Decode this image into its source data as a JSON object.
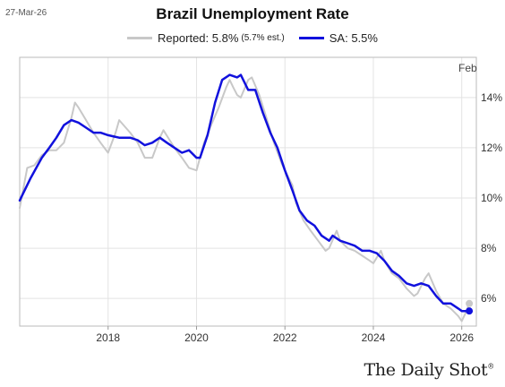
{
  "header": {
    "date": "27-Mar-26",
    "title": "Brazil Unemployment Rate"
  },
  "legend": {
    "reported_label": "Reported: 5.8%",
    "reported_note": "(5.7% est.)",
    "sa_label": "SA: 5.5%"
  },
  "brand": {
    "name": "The Daily Shot",
    "mark": "®"
  },
  "chart_data": {
    "type": "line",
    "title": "Brazil Unemployment Rate",
    "xlabel": "",
    "ylabel": "",
    "xlim": [
      2016.0,
      2026.33
    ],
    "ylim": [
      4.9,
      15.6
    ],
    "x_ticks": [
      2018,
      2020,
      2022,
      2024,
      2026
    ],
    "x_tick_labels": [
      "2018",
      "2020",
      "2022",
      "2024",
      "2026"
    ],
    "y_ticks": [
      6,
      8,
      10,
      12,
      14
    ],
    "y_tick_labels": [
      "6%",
      "8%",
      "10%",
      "12%",
      "14%"
    ],
    "grid": true,
    "legend_position": "top",
    "annotation": "Feb",
    "colors": {
      "reported": "#c8c8c8",
      "sa": "#1111dd",
      "grid": "#e3e3e3"
    },
    "series": [
      {
        "name": "Reported",
        "legend_label": "Reported: 5.8%",
        "color": "#c8c8c8",
        "points": [
          [
            2016.0,
            9.6
          ],
          [
            2016.17,
            11.2
          ],
          [
            2016.33,
            11.3
          ],
          [
            2016.5,
            11.7
          ],
          [
            2016.67,
            11.9
          ],
          [
            2016.83,
            11.9
          ],
          [
            2017.0,
            12.2
          ],
          [
            2017.17,
            13.2
          ],
          [
            2017.25,
            13.8
          ],
          [
            2017.33,
            13.6
          ],
          [
            2017.5,
            13.1
          ],
          [
            2017.67,
            12.6
          ],
          [
            2017.83,
            12.2
          ],
          [
            2018.0,
            11.8
          ],
          [
            2018.17,
            12.6
          ],
          [
            2018.25,
            13.1
          ],
          [
            2018.5,
            12.6
          ],
          [
            2018.67,
            12.2
          ],
          [
            2018.83,
            11.6
          ],
          [
            2019.0,
            11.6
          ],
          [
            2019.17,
            12.4
          ],
          [
            2019.25,
            12.7
          ],
          [
            2019.5,
            12.0
          ],
          [
            2019.67,
            11.6
          ],
          [
            2019.83,
            11.2
          ],
          [
            2020.0,
            11.1
          ],
          [
            2020.17,
            12.2
          ],
          [
            2020.33,
            12.9
          ],
          [
            2020.5,
            13.6
          ],
          [
            2020.67,
            14.4
          ],
          [
            2020.75,
            14.7
          ],
          [
            2020.83,
            14.4
          ],
          [
            2020.92,
            14.1
          ],
          [
            2021.0,
            14.0
          ],
          [
            2021.17,
            14.7
          ],
          [
            2021.25,
            14.8
          ],
          [
            2021.42,
            14.1
          ],
          [
            2021.58,
            13.2
          ],
          [
            2021.75,
            12.2
          ],
          [
            2021.92,
            11.4
          ],
          [
            2022.0,
            11.1
          ],
          [
            2022.17,
            10.5
          ],
          [
            2022.25,
            9.8
          ],
          [
            2022.42,
            9.1
          ],
          [
            2022.58,
            8.7
          ],
          [
            2022.75,
            8.3
          ],
          [
            2022.92,
            7.9
          ],
          [
            2023.0,
            8.0
          ],
          [
            2023.17,
            8.7
          ],
          [
            2023.25,
            8.3
          ],
          [
            2023.42,
            8.0
          ],
          [
            2023.58,
            7.9
          ],
          [
            2023.75,
            7.7
          ],
          [
            2023.92,
            7.5
          ],
          [
            2024.0,
            7.4
          ],
          [
            2024.17,
            7.9
          ],
          [
            2024.25,
            7.5
          ],
          [
            2024.42,
            7.0
          ],
          [
            2024.58,
            6.8
          ],
          [
            2024.75,
            6.4
          ],
          [
            2024.92,
            6.1
          ],
          [
            2025.0,
            6.2
          ],
          [
            2025.17,
            6.8
          ],
          [
            2025.25,
            7.0
          ],
          [
            2025.42,
            6.3
          ],
          [
            2025.58,
            5.8
          ],
          [
            2025.75,
            5.6
          ],
          [
            2025.92,
            5.3
          ],
          [
            2026.0,
            5.1
          ],
          [
            2026.08,
            5.4
          ],
          [
            2026.17,
            5.8
          ]
        ]
      },
      {
        "name": "SA",
        "legend_label": "SA: 5.5%",
        "color": "#1111dd",
        "points": [
          [
            2016.0,
            9.9
          ],
          [
            2016.25,
            10.8
          ],
          [
            2016.5,
            11.6
          ],
          [
            2016.67,
            12.0
          ],
          [
            2016.83,
            12.4
          ],
          [
            2017.0,
            12.9
          ],
          [
            2017.17,
            13.1
          ],
          [
            2017.33,
            13.0
          ],
          [
            2017.5,
            12.8
          ],
          [
            2017.67,
            12.6
          ],
          [
            2017.83,
            12.6
          ],
          [
            2018.0,
            12.5
          ],
          [
            2018.25,
            12.4
          ],
          [
            2018.5,
            12.4
          ],
          [
            2018.67,
            12.3
          ],
          [
            2018.83,
            12.1
          ],
          [
            2019.0,
            12.2
          ],
          [
            2019.17,
            12.4
          ],
          [
            2019.33,
            12.2
          ],
          [
            2019.5,
            12.0
          ],
          [
            2019.67,
            11.8
          ],
          [
            2019.83,
            11.9
          ],
          [
            2020.0,
            11.6
          ],
          [
            2020.08,
            11.6
          ],
          [
            2020.25,
            12.5
          ],
          [
            2020.42,
            13.8
          ],
          [
            2020.58,
            14.7
          ],
          [
            2020.75,
            14.9
          ],
          [
            2020.92,
            14.8
          ],
          [
            2021.0,
            14.9
          ],
          [
            2021.17,
            14.3
          ],
          [
            2021.33,
            14.3
          ],
          [
            2021.5,
            13.4
          ],
          [
            2021.67,
            12.6
          ],
          [
            2021.83,
            12.0
          ],
          [
            2022.0,
            11.1
          ],
          [
            2022.17,
            10.3
          ],
          [
            2022.33,
            9.5
          ],
          [
            2022.5,
            9.1
          ],
          [
            2022.67,
            8.9
          ],
          [
            2022.83,
            8.5
          ],
          [
            2023.0,
            8.3
          ],
          [
            2023.08,
            8.5
          ],
          [
            2023.25,
            8.3
          ],
          [
            2023.42,
            8.2
          ],
          [
            2023.58,
            8.1
          ],
          [
            2023.75,
            7.9
          ],
          [
            2023.92,
            7.9
          ],
          [
            2024.08,
            7.8
          ],
          [
            2024.25,
            7.5
          ],
          [
            2024.42,
            7.1
          ],
          [
            2024.58,
            6.9
          ],
          [
            2024.75,
            6.6
          ],
          [
            2024.92,
            6.5
          ],
          [
            2025.08,
            6.6
          ],
          [
            2025.25,
            6.5
          ],
          [
            2025.42,
            6.1
          ],
          [
            2025.58,
            5.8
          ],
          [
            2025.75,
            5.8
          ],
          [
            2025.92,
            5.6
          ],
          [
            2026.0,
            5.5
          ],
          [
            2026.17,
            5.5
          ]
        ]
      }
    ]
  }
}
